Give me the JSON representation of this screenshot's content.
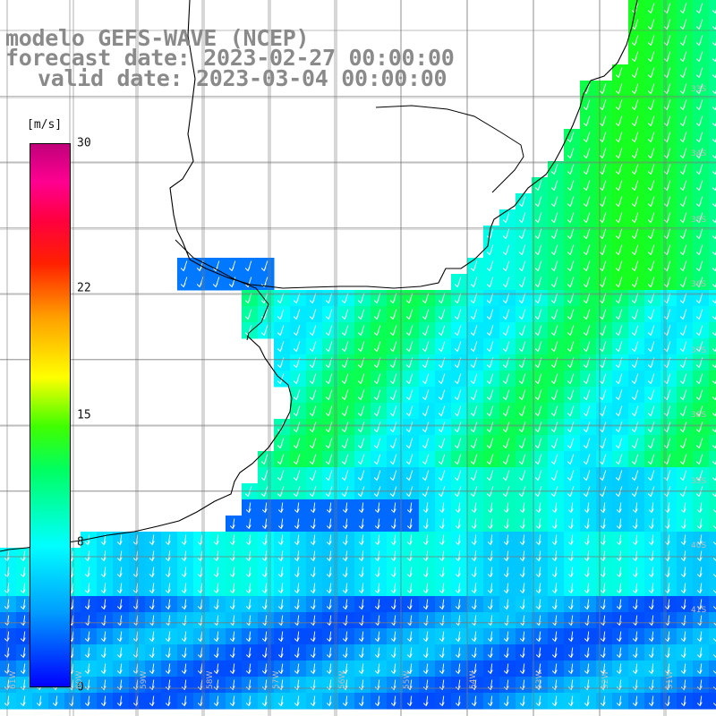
{
  "titles": {
    "model": "modelo GEFS-WAVE (NCEP)",
    "forecast": "forecast date: 2023-02-27 00:00:00",
    "valid": "valid date: 2023-03-04 00:00:00"
  },
  "colorbar": {
    "unit": "[m/s]",
    "ticks": [
      {
        "label": "30",
        "value": 30
      },
      {
        "label": "22",
        "value": 22
      },
      {
        "label": "15",
        "value": 15
      },
      {
        "label": "8",
        "value": 8
      },
      {
        "label": "0",
        "value": 0
      }
    ],
    "min": 0,
    "max": 30
  },
  "map": {
    "land_color": "#ffffff",
    "coast_color": "#000000",
    "grid_color": "#7a7a7a",
    "vector_color": "#ffffff",
    "lat_labels": [
      "33S",
      "34S",
      "35S",
      "36S",
      "37S",
      "38S",
      "39S",
      "40S",
      "41S"
    ],
    "lon_labels": [
      "61W",
      "60W",
      "59W",
      "58W",
      "57W",
      "56W",
      "55W",
      "54W",
      "53W",
      "52W",
      "51W"
    ]
  }
}
